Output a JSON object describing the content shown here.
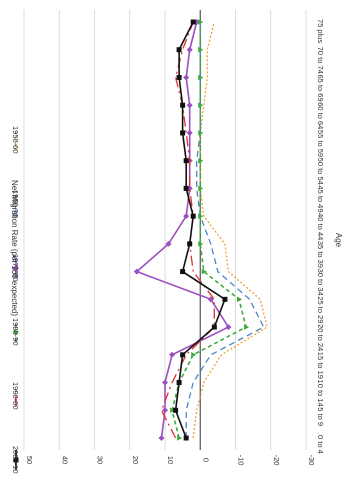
{
  "chart_data": {
    "type": "line",
    "orientation": "rotated-90-clockwise",
    "xlabel": "Age",
    "ylabel": "Net Migration Rate (per 100 expected)",
    "categories": [
      "0 to 4",
      "5 to 9",
      "10 to 14",
      "15 to 19",
      "20 to 24",
      "25 to 29",
      "30 to 34",
      "35 to 39",
      "40 to 44",
      "45 to 49",
      "50 to 54",
      "55 to 59",
      "60 to 64",
      "65 to 69",
      "70 to 74",
      "75 plus"
    ],
    "ylim": [
      -30,
      50
    ],
    "yticks": [
      -30,
      -20,
      -10,
      0,
      10,
      20,
      30,
      40,
      50
    ],
    "grid": true,
    "legend_position": "top",
    "series": [
      {
        "name": "1950-60",
        "color": "#f0a030",
        "dash": "2,2",
        "marker": "none",
        "values": [
          2,
          1,
          -1,
          -6,
          -19,
          -17,
          -8,
          -7,
          -1,
          0,
          0,
          0,
          -1,
          -2,
          -2,
          -4
        ]
      },
      {
        "name": "1960-70",
        "color": "#4a86c8",
        "dash": "6,4",
        "marker": "none",
        "values": [
          4,
          4,
          2,
          -3,
          -18,
          -14,
          -5,
          -3,
          0,
          1,
          1,
          0,
          0,
          0,
          0,
          0
        ]
      },
      {
        "name": "1970-80",
        "color": "#9b4fc0",
        "dash": "",
        "marker": "diamond",
        "values": [
          11,
          10,
          10,
          8,
          -8,
          -3,
          18,
          9,
          4,
          3,
          3,
          3,
          3,
          4,
          3,
          1
        ]
      },
      {
        "name": "1980-90",
        "color": "#3caa3c",
        "dash": "4,3",
        "marker": "triangle",
        "values": [
          6,
          8,
          6,
          2,
          -13,
          -11,
          -1,
          0,
          0,
          0,
          0,
          0,
          0,
          0,
          0,
          0
        ]
      },
      {
        "name": "1990-00",
        "color": "#e03030",
        "dash": "10,4,2,4",
        "marker": "none",
        "values": [
          7,
          11,
          8,
          4,
          -4,
          -4,
          2,
          3,
          2,
          3,
          3,
          4,
          5,
          7,
          5,
          2
        ]
      },
      {
        "name": "2000-10",
        "color": "#111111",
        "dash": "",
        "marker": "square",
        "values": [
          4,
          7,
          6,
          5,
          -4,
          -7,
          5,
          3,
          2,
          4,
          4,
          5,
          5,
          6,
          6,
          2
        ]
      }
    ]
  }
}
